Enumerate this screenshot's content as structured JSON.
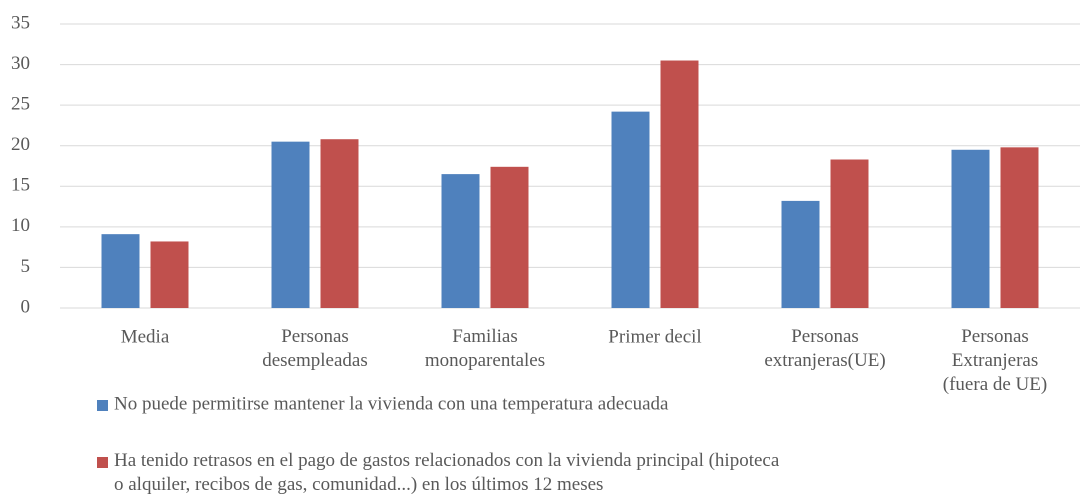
{
  "chart_data": {
    "type": "bar",
    "categories": [
      "Media",
      "Personas\ndesempleadas",
      "Familias\nmonoparentales",
      "Primer decil",
      "Personas\nextranjeras(UE)",
      "Personas\nExtranjeras\n(fuera de UE)"
    ],
    "series": [
      {
        "name": "No puede permitirse mantener la vivienda con una temperatura adecuada",
        "color": "#4f81bd",
        "values": [
          9.1,
          20.5,
          16.5,
          24.2,
          13.2,
          19.5
        ]
      },
      {
        "name": "Ha tenido retrasos en el pago de gastos relacionados con la vivienda principal (hipoteca\no alquiler, recibos de gas, comunidad...) en los últimos 12 meses",
        "color": "#c0504d",
        "values": [
          8.2,
          20.8,
          17.4,
          30.5,
          18.3,
          19.8
        ]
      }
    ],
    "ylim": [
      0,
      35
    ],
    "yticks": [
      0,
      5,
      10,
      15,
      20,
      25,
      30,
      35
    ],
    "grid": true
  }
}
